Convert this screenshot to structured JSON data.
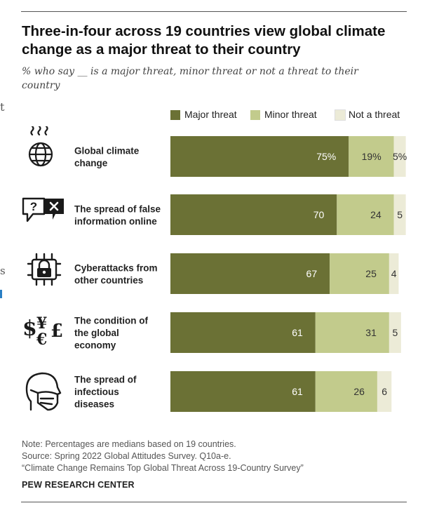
{
  "title": "Three-in-four across 19 countries view global climate change as a major threat to their country",
  "subtitle": "% who say __ is a major threat, minor threat or not a threat to their country",
  "edge_fragments": {
    "left_top": "t",
    "left_mid": "s"
  },
  "colors": {
    "major": "#6b7135",
    "minor": "#c2cb8c",
    "not": "#ecebd7"
  },
  "chart_data": {
    "type": "bar",
    "orientation": "horizontal",
    "stacked": true,
    "xlim": [
      0,
      100
    ],
    "legend_position": "top",
    "categories": [
      "Global climate change",
      "The spread of false information online",
      "Cyberattacks from other countries",
      "The condition of the global economy",
      "The spread of infectious diseases"
    ],
    "series": [
      {
        "name": "Major threat",
        "values": [
          75,
          70,
          67,
          61,
          61
        ]
      },
      {
        "name": "Minor threat",
        "values": [
          19,
          24,
          25,
          31,
          26
        ]
      },
      {
        "name": "Not a threat",
        "values": [
          5,
          5,
          4,
          5,
          6
        ]
      }
    ],
    "value_labels": [
      [
        "75%",
        "19%",
        "5%"
      ],
      [
        "70",
        "24",
        "5"
      ],
      [
        "67",
        "25",
        "4"
      ],
      [
        "61",
        "31",
        "5"
      ],
      [
        "61",
        "26",
        "6"
      ]
    ],
    "category_labels": [
      [
        "Global climate",
        "change"
      ],
      [
        "The spread of false",
        "information online"
      ],
      [
        "Cyberattacks from",
        "other countries"
      ],
      [
        "The condition of",
        "the global",
        "economy"
      ],
      [
        "The spread of",
        "infectious",
        "diseases"
      ]
    ],
    "icons": [
      "globe-heat-icon",
      "false-information-icon",
      "cyberattack-lock-icon",
      "currency-icon",
      "mask-icon"
    ]
  },
  "notes": [
    "Note: Percentages are medians based on 19 countries.",
    "Source: Spring 2022 Global Attitudes Survey. Q10a-e.",
    "“Climate Change Remains Top Global Threat Across 19-Country Survey”"
  ],
  "org": "PEW RESEARCH CENTER"
}
